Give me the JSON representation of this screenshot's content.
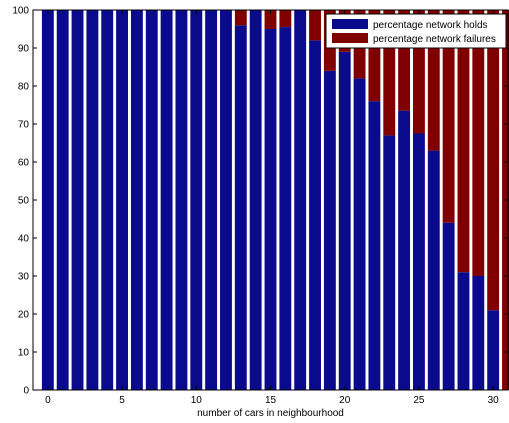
{
  "chart_data": {
    "type": "bar",
    "stacked": true,
    "title": "",
    "xlabel": "number of cars in neighbourhood",
    "ylabel": "",
    "xlim": [
      -1,
      31
    ],
    "ylim": [
      0,
      100
    ],
    "xticks": [
      0,
      5,
      10,
      15,
      20,
      25,
      30
    ],
    "yticks": [
      0,
      10,
      20,
      30,
      40,
      50,
      60,
      70,
      80,
      90,
      100
    ],
    "grid": false,
    "legend_position": "top-right",
    "x": [
      0,
      1,
      2,
      3,
      4,
      5,
      6,
      7,
      8,
      9,
      10,
      11,
      12,
      13,
      14,
      15,
      16,
      17,
      18,
      19,
      20,
      21,
      22,
      23,
      24,
      25,
      26,
      27,
      28,
      29,
      30,
      31
    ],
    "series": [
      {
        "name": "percentage network holds",
        "color": "#0a0a8c",
        "values": [
          100,
          100,
          100,
          100,
          100,
          100,
          100,
          100,
          100,
          100,
          100,
          100,
          100,
          96,
          100,
          95,
          95.5,
          100,
          92,
          84,
          89,
          82,
          76,
          67,
          73.5,
          67.5,
          63,
          44,
          31,
          30,
          21,
          0
        ]
      },
      {
        "name": "percentage network failures",
        "color": "#800000",
        "values": [
          0,
          0,
          0,
          0,
          0,
          0,
          0,
          0,
          0,
          0,
          0,
          0,
          0,
          4,
          0,
          5,
          4.5,
          0,
          8,
          16,
          11,
          18,
          24,
          33,
          26.5,
          32.5,
          37,
          56,
          69,
          70,
          79,
          100
        ]
      }
    ]
  }
}
